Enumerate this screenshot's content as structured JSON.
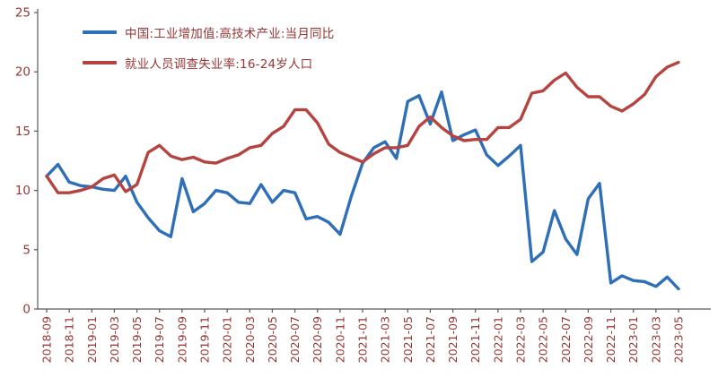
{
  "page": {
    "background": "#ffffff"
  },
  "chart_data": {
    "type": "line",
    "title": "",
    "grid": false,
    "legend_position": "top-left",
    "ylim": [
      0,
      25
    ],
    "yticks": [
      0,
      5,
      10,
      15,
      20,
      25
    ],
    "x_tick_interval": 2,
    "axis_color": "#595959",
    "tick_label_color": "#943634",
    "categories": [
      "2018-09",
      "2018-10",
      "2018-11",
      "2018-12",
      "2019-01",
      "2019-02",
      "2019-03",
      "2019-04",
      "2019-05",
      "2019-06",
      "2019-07",
      "2019-08",
      "2019-09",
      "2019-10",
      "2019-11",
      "2019-12",
      "2020-01",
      "2020-02",
      "2020-03",
      "2020-04",
      "2020-05",
      "2020-06",
      "2020-07",
      "2020-08",
      "2020-09",
      "2020-10",
      "2020-11",
      "2020-12",
      "2021-01",
      "2021-02",
      "2021-03",
      "2021-04",
      "2021-05",
      "2021-06",
      "2021-07",
      "2021-08",
      "2021-09",
      "2021-10",
      "2021-11",
      "2021-12",
      "2022-01",
      "2022-02",
      "2022-03",
      "2022-04",
      "2022-05",
      "2022-06",
      "2022-07",
      "2022-08",
      "2022-09",
      "2022-10",
      "2022-11",
      "2022-12",
      "2023-01",
      "2023-02",
      "2023-03",
      "2023-04",
      "2023-05"
    ],
    "series": [
      {
        "name": "中国:工业增加值:高技术产业:当月同比",
        "color": "#2e6fb7",
        "values": [
          11.2,
          12.2,
          10.7,
          10.4,
          10.3,
          10.1,
          10.0,
          11.2,
          9.0,
          7.7,
          6.6,
          6.1,
          11.0,
          8.2,
          8.9,
          10.0,
          9.8,
          9.0,
          8.9,
          10.5,
          9.0,
          10.0,
          9.8,
          7.6,
          7.8,
          7.3,
          6.3,
          9.5,
          12.3,
          13.6,
          14.1,
          12.7,
          17.5,
          18.0,
          15.6,
          18.3,
          14.2,
          14.7,
          15.1,
          13.0,
          12.1,
          12.9,
          13.8,
          4.0,
          4.8,
          8.3,
          5.9,
          4.6,
          9.3,
          10.6,
          2.2,
          2.8,
          2.4,
          2.3,
          1.9,
          2.7,
          1.7
        ]
      },
      {
        "name": "就业人员调查失业率:16-24岁人口",
        "color": "#b5433f",
        "values": [
          11.2,
          9.8,
          9.8,
          10.0,
          10.3,
          11.0,
          11.3,
          9.9,
          10.5,
          13.2,
          13.8,
          12.9,
          12.6,
          12.8,
          12.4,
          12.3,
          12.7,
          13.0,
          13.6,
          13.8,
          14.8,
          15.4,
          16.8,
          16.8,
          15.7,
          13.9,
          13.2,
          12.8,
          12.4,
          13.1,
          13.6,
          13.6,
          13.8,
          15.4,
          16.2,
          15.3,
          14.6,
          14.2,
          14.3,
          14.3,
          15.3,
          15.3,
          16.0,
          18.2,
          18.4,
          19.3,
          19.9,
          18.7,
          17.9,
          17.9,
          17.1,
          16.7,
          17.3,
          18.1,
          19.6,
          20.4,
          20.8
        ]
      }
    ]
  }
}
